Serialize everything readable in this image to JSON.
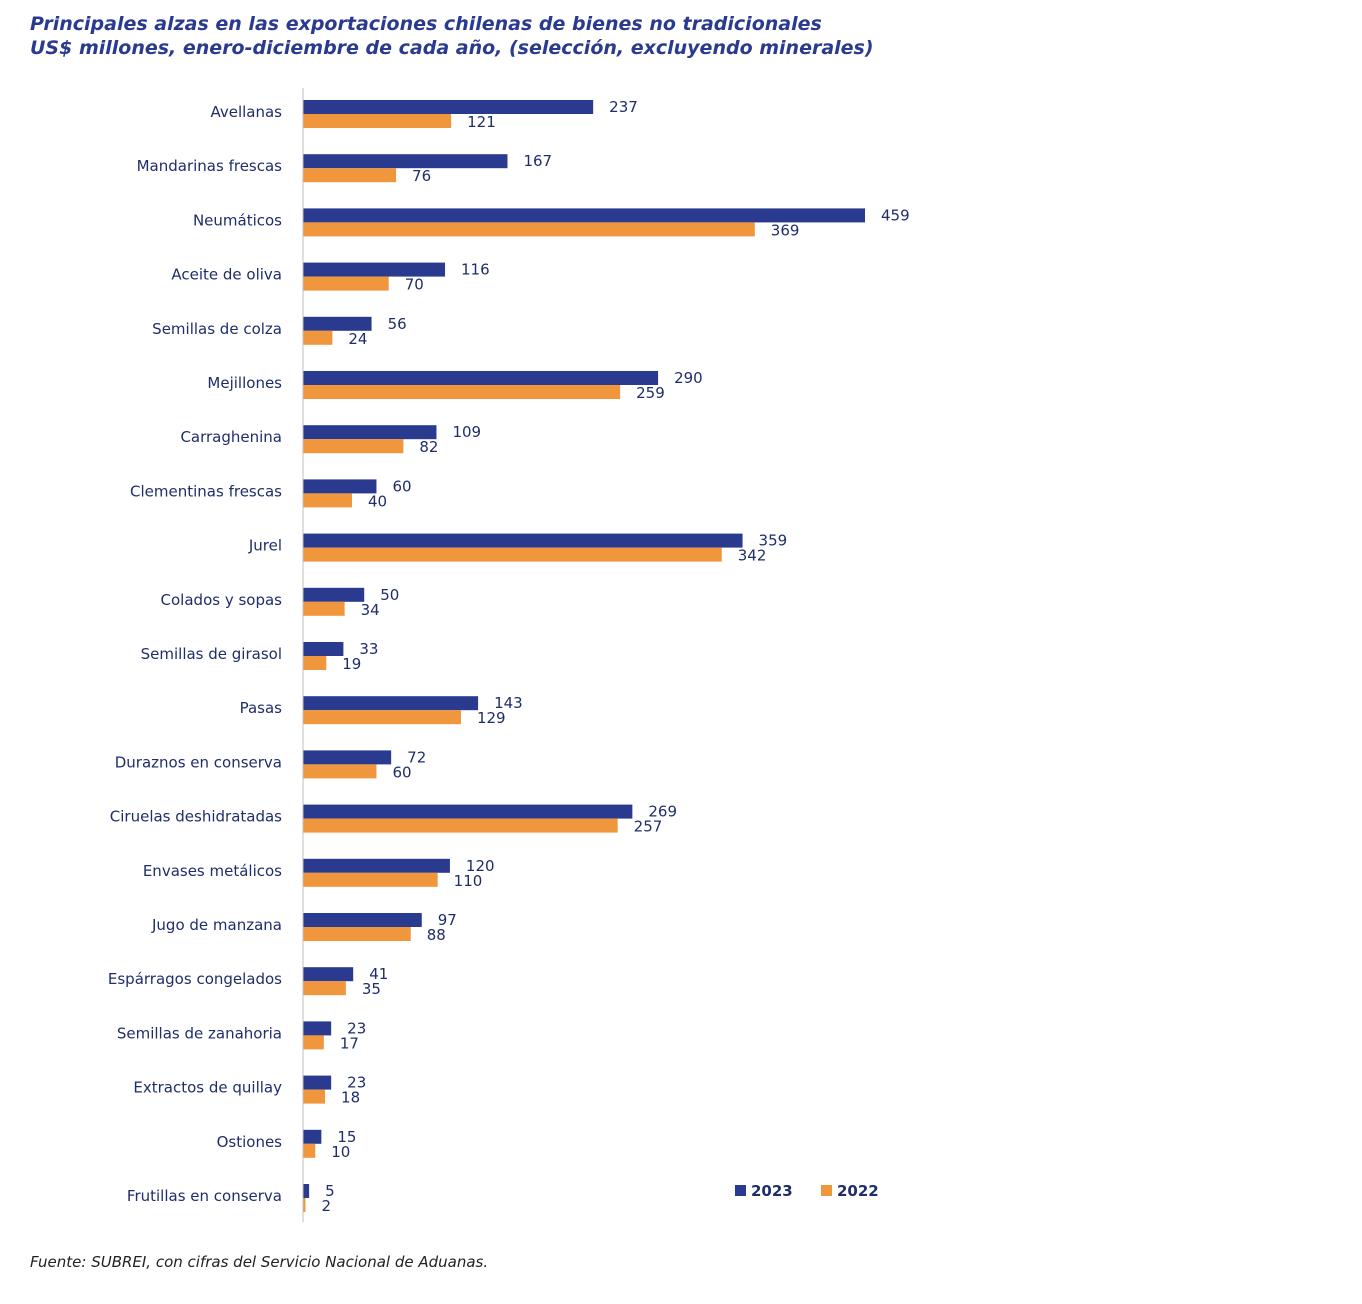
{
  "title_line1": "Principales alzas en las exportaciones chilenas de bienes no tradicionales",
  "title_line2": "US$ millones, enero-diciembre de cada año, (selección, excluyendo minerales)",
  "source": "Fuente: SUBREI, con cifras del Servicio Nacional de Aduanas.",
  "colors": {
    "series_2023": "#2a3b8f",
    "series_2022": "#f0963c",
    "axis": "#bfbfbf",
    "text": "#1f2d6b"
  },
  "chart_data": {
    "type": "bar",
    "orientation": "horizontal",
    "categories": [
      "Avellanas",
      "Mandarinas frescas",
      "Neumáticos",
      "Aceite de oliva",
      "Semillas de colza",
      "Mejillones",
      "Carraghenina",
      "Clementinas frescas",
      "Jurel",
      "Colados y sopas",
      "Semillas de girasol",
      "Pasas",
      "Duraznos en conserva",
      "Ciruelas deshidratadas",
      "Envases metálicos",
      "Jugo de manzana",
      "Espárragos congelados",
      "Semillas de zanahoria",
      "Extractos de quillay",
      "Ostiones",
      "Frutillas en conserva"
    ],
    "series": [
      {
        "name": "2023",
        "values": [
          237,
          167,
          459,
          116,
          56,
          290,
          109,
          60,
          359,
          50,
          33,
          143,
          72,
          269,
          120,
          97,
          41,
          23,
          23,
          15,
          5
        ]
      },
      {
        "name": "2022",
        "values": [
          121,
          76,
          369,
          70,
          24,
          259,
          82,
          40,
          342,
          34,
          19,
          129,
          60,
          257,
          110,
          88,
          35,
          17,
          18,
          10,
          2
        ]
      }
    ],
    "xlim": [
      0,
      459
    ],
    "grid": false,
    "legend_position": "bottom-right",
    "data_labels": true
  }
}
